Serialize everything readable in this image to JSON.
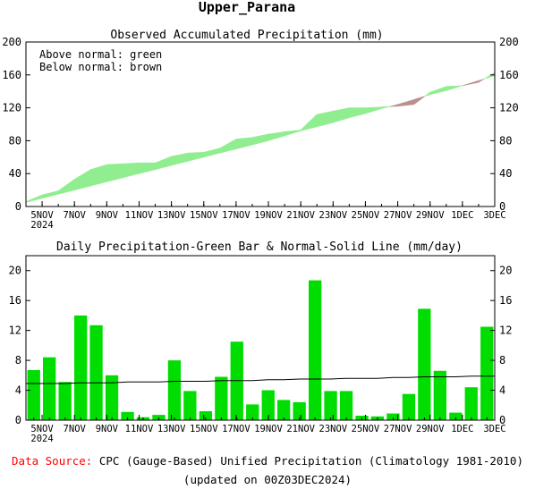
{
  "title": "Upper_Parana",
  "footer": {
    "source_label": "Data Source:",
    "source_text": "CPC (Gauge-Based) Unified Precipitation (Climatology 1981-2010)",
    "updated_text": "(updated on 00Z03DEC2024)",
    "source_label_color": "#ff0000"
  },
  "chart_data": [
    {
      "type": "area",
      "title": "Observed Accumulated Precipitation (mm)",
      "legend_lines": [
        "Above normal: green",
        "Below normal: brown"
      ],
      "colors": {
        "above": "#90ee90",
        "below": "#bc8f8f"
      },
      "x_tick_labels": [
        "5NOV",
        "7NOV",
        "9NOV",
        "11NOV",
        "13NOV",
        "15NOV",
        "17NOV",
        "19NOV",
        "21NOV",
        "23NOV",
        "25NOV",
        "27NOV",
        "29NOV",
        "1DEC",
        "3DEC"
      ],
      "x_sub_label": "2024",
      "y_ticks": [
        0,
        40,
        80,
        120,
        160,
        200
      ],
      "ylim": [
        0,
        200
      ],
      "grid": false,
      "x": [
        "4NOV",
        "5NOV",
        "6NOV",
        "7NOV",
        "8NOV",
        "9NOV",
        "10NOV",
        "11NOV",
        "12NOV",
        "13NOV",
        "14NOV",
        "15NOV",
        "16NOV",
        "17NOV",
        "18NOV",
        "19NOV",
        "20NOV",
        "21NOV",
        "22NOV",
        "23NOV",
        "24NOV",
        "25NOV",
        "26NOV",
        "27NOV",
        "28NOV",
        "29NOV",
        "30NOV",
        "1DEC",
        "2DEC",
        "3DEC"
      ],
      "series": [
        {
          "name": "Observed",
          "values": [
            6,
            14,
            19,
            33,
            45,
            51,
            52,
            53,
            53,
            61,
            65,
            66,
            71,
            82,
            84,
            88,
            91,
            93,
            112,
            116,
            120,
            120,
            121,
            122,
            124,
            139,
            146,
            147,
            151,
            163
          ]
        },
        {
          "name": "Normal",
          "values": [
            5,
            10,
            15,
            20,
            25,
            30,
            35,
            40,
            45,
            50,
            55,
            60,
            65,
            70,
            75,
            80,
            86,
            92,
            97,
            102,
            108,
            113,
            119,
            124,
            130,
            136,
            141,
            147,
            153,
            159
          ]
        }
      ]
    },
    {
      "type": "bar",
      "title": "Daily Precipitation-Green Bar & Normal-Solid Line (mm/day)",
      "colors": {
        "bar": "#00dd00",
        "line": "#000000"
      },
      "x_tick_labels": [
        "5NOV",
        "7NOV",
        "9NOV",
        "11NOV",
        "13NOV",
        "15NOV",
        "17NOV",
        "19NOV",
        "21NOV",
        "23NOV",
        "25NOV",
        "27NOV",
        "29NOV",
        "1DEC",
        "3DEC"
      ],
      "x_sub_label": "2024",
      "y_ticks": [
        0,
        4,
        8,
        12,
        16,
        20
      ],
      "ylim": [
        0,
        22
      ],
      "grid": false,
      "x": [
        "4NOV",
        "5NOV",
        "6NOV",
        "7NOV",
        "8NOV",
        "9NOV",
        "10NOV",
        "11NOV",
        "12NOV",
        "13NOV",
        "14NOV",
        "15NOV",
        "16NOV",
        "17NOV",
        "18NOV",
        "19NOV",
        "20NOV",
        "21NOV",
        "22NOV",
        "23NOV",
        "24NOV",
        "25NOV",
        "26NOV",
        "27NOV",
        "28NOV",
        "29NOV",
        "30NOV",
        "1DEC",
        "2DEC",
        "3DEC"
      ],
      "series": [
        {
          "name": "Daily Precipitation",
          "values": [
            6.7,
            8.4,
            5.1,
            14.0,
            12.7,
            6.0,
            1.1,
            0.4,
            0.7,
            8.0,
            3.9,
            1.2,
            5.8,
            10.5,
            2.1,
            4.0,
            2.7,
            2.4,
            18.7,
            3.9,
            3.9,
            0.6,
            0.5,
            0.9,
            3.5,
            14.9,
            6.6,
            1.0,
            4.4,
            12.5
          ]
        },
        {
          "name": "Normal",
          "values": [
            4.9,
            4.9,
            4.9,
            5.0,
            5.0,
            5.0,
            5.1,
            5.1,
            5.1,
            5.2,
            5.2,
            5.2,
            5.3,
            5.3,
            5.3,
            5.4,
            5.4,
            5.5,
            5.5,
            5.5,
            5.6,
            5.6,
            5.6,
            5.7,
            5.7,
            5.8,
            5.8,
            5.8,
            5.9,
            5.9
          ]
        }
      ]
    }
  ]
}
